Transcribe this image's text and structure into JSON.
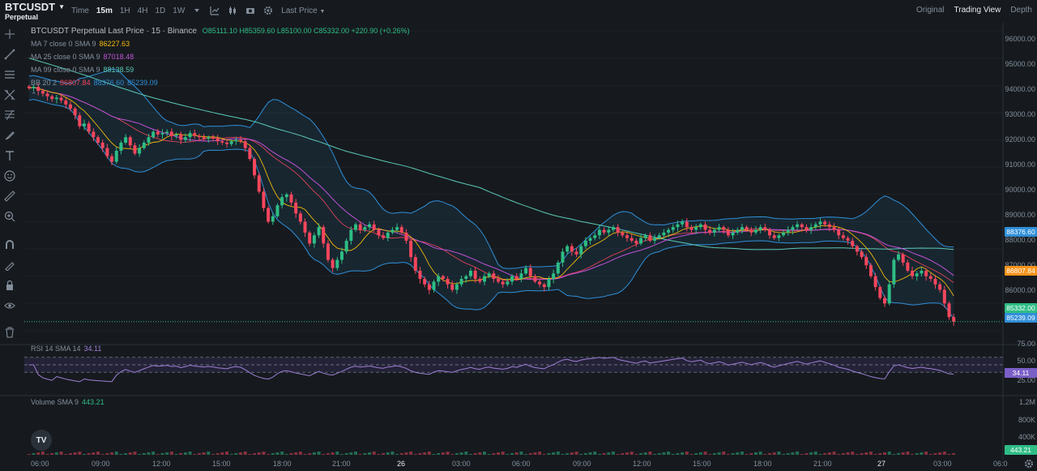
{
  "header": {
    "symbol": "BTCUSDT",
    "contract": "Perpetual",
    "toolbar": {
      "time_label": "Time",
      "intervals": [
        "15m",
        "1H",
        "4H",
        "1D",
        "1W"
      ],
      "active_interval": "15m",
      "price_source": "Last Price"
    },
    "views": [
      "Original",
      "Trading View",
      "Depth"
    ],
    "active_view": "Trading View"
  },
  "legend": {
    "title": "BTCUSDT Perpetual Last Price · 15 · Binance",
    "ohlc": "O85111.10 H85359.60 L85100.00 C85332.00 +220.90 (+0.26%)",
    "ma7_label": "MA 7 close 0 SMA 9",
    "ma7_value": "86227.63",
    "ma25_label": "MA 25 close 0 SMA 9",
    "ma25_value": "87018.48",
    "ma99_label": "MA 99 close 0 SMA 9",
    "ma99_value": "88138.59",
    "bb_label": "BB 20 2",
    "bb_basis": "86807.84",
    "bb_upper": "88376.60",
    "bb_lower": "85239.09",
    "rsi_label": "RSI 14 SMA 14",
    "rsi_value": "34.11",
    "vol_label": "Volume SMA 9",
    "vol_value": "443.21"
  },
  "price_axis": [
    "96000.00",
    "95000.00",
    "94000.00",
    "93000.00",
    "92000.00",
    "91000.00",
    "90000.00",
    "89000.00",
    "88000.00",
    "87000.00",
    "86000.00",
    "85000.00"
  ],
  "price_tags": {
    "bb_upper": "88376.60",
    "bb_basis": "86807.84",
    "last": "85332.00",
    "bb_lower": "85239.09"
  },
  "rsi_axis": [
    "75.00",
    "50.00",
    "25.00"
  ],
  "rsi_tag": "34.11",
  "volume_axis": [
    "1.2M",
    "800K",
    "400K"
  ],
  "volume_tag": "443.21",
  "time_axis": [
    "06:00",
    "09:00",
    "12:00",
    "15:00",
    "18:00",
    "21:00",
    "26",
    "03:00",
    "06:00",
    "09:00",
    "12:00",
    "15:00",
    "18:00",
    "21:00",
    "27",
    "03:00",
    "06:0"
  ],
  "colors": {
    "up": "#2ebd85",
    "down": "#f6465d",
    "ma7": "#f0b90b",
    "ma25": "#c052d6",
    "ma99": "#5cc8b8",
    "bb": "#2f8fd8",
    "rsi": "#9d7fd6",
    "tag_orange": "#f7931a",
    "tag_blue": "#2f8fd8",
    "tag_green": "#2ebd85"
  },
  "chart_data": {
    "type": "candlestick",
    "price_range": [
      84700,
      96300
    ],
    "closes": [
      93900,
      93950,
      93800,
      93700,
      93600,
      93500,
      93550,
      93450,
      93300,
      93150,
      92900,
      92500,
      92600,
      92300,
      92100,
      91900,
      91700,
      91400,
      91200,
      91600,
      91900,
      92100,
      91800,
      91500,
      91700,
      91900,
      92100,
      92300,
      92200,
      92250,
      92300,
      92150,
      92200,
      92000,
      92100,
      92250,
      92150,
      92100,
      92050,
      92100,
      92050,
      91950,
      91900,
      91850,
      91950,
      92000,
      91950,
      91700,
      91300,
      90700,
      90100,
      89500,
      89000,
      89200,
      89600,
      89900,
      90000,
      89700,
      89300,
      89000,
      88600,
      88200,
      88500,
      88800,
      88200,
      87600,
      87300,
      87600,
      87900,
      88300,
      88700,
      88900,
      88700,
      88800,
      88900,
      88700,
      88500,
      88400,
      88600,
      88700,
      88800,
      88600,
      88300,
      87700,
      87200,
      86900,
      86700,
      86500,
      86800,
      87000,
      86900,
      86700,
      86500,
      86700,
      86900,
      87000,
      87200,
      86900,
      86800,
      87000,
      87100,
      86900,
      86800,
      86700,
      86800,
      87000,
      86900,
      87100,
      87300,
      87000,
      86800,
      86700,
      86600,
      86900,
      87100,
      87500,
      87900,
      88100,
      87900,
      87800,
      88100,
      88300,
      88400,
      88500,
      88700,
      88600,
      88700,
      88800,
      88600,
      88500,
      88400,
      88300,
      88200,
      88400,
      88500,
      88300,
      88400,
      88500,
      88600,
      88700,
      88800,
      88900,
      89000,
      88800,
      88700,
      88800,
      88900,
      88700,
      88600,
      88700,
      88800,
      88700,
      88500,
      88600,
      88700,
      88800,
      88700,
      88600,
      88700,
      88800,
      88700,
      88500,
      88400,
      88500,
      88600,
      88700,
      88800,
      88900,
      88800,
      88700,
      88800,
      88900,
      89000,
      88900,
      88800,
      88700,
      88500,
      88400,
      88300,
      88100,
      87900,
      87700,
      87400,
      87000,
      86600,
      86200,
      86000,
      86700,
      87600,
      87800,
      87500,
      87200,
      87000,
      87100,
      87200,
      87000,
      86900,
      86700,
      86500,
      86000,
      85500,
      85332
    ],
    "rsi_range": [
      0,
      100
    ],
    "rsi_levels": [
      70,
      50,
      30
    ]
  }
}
